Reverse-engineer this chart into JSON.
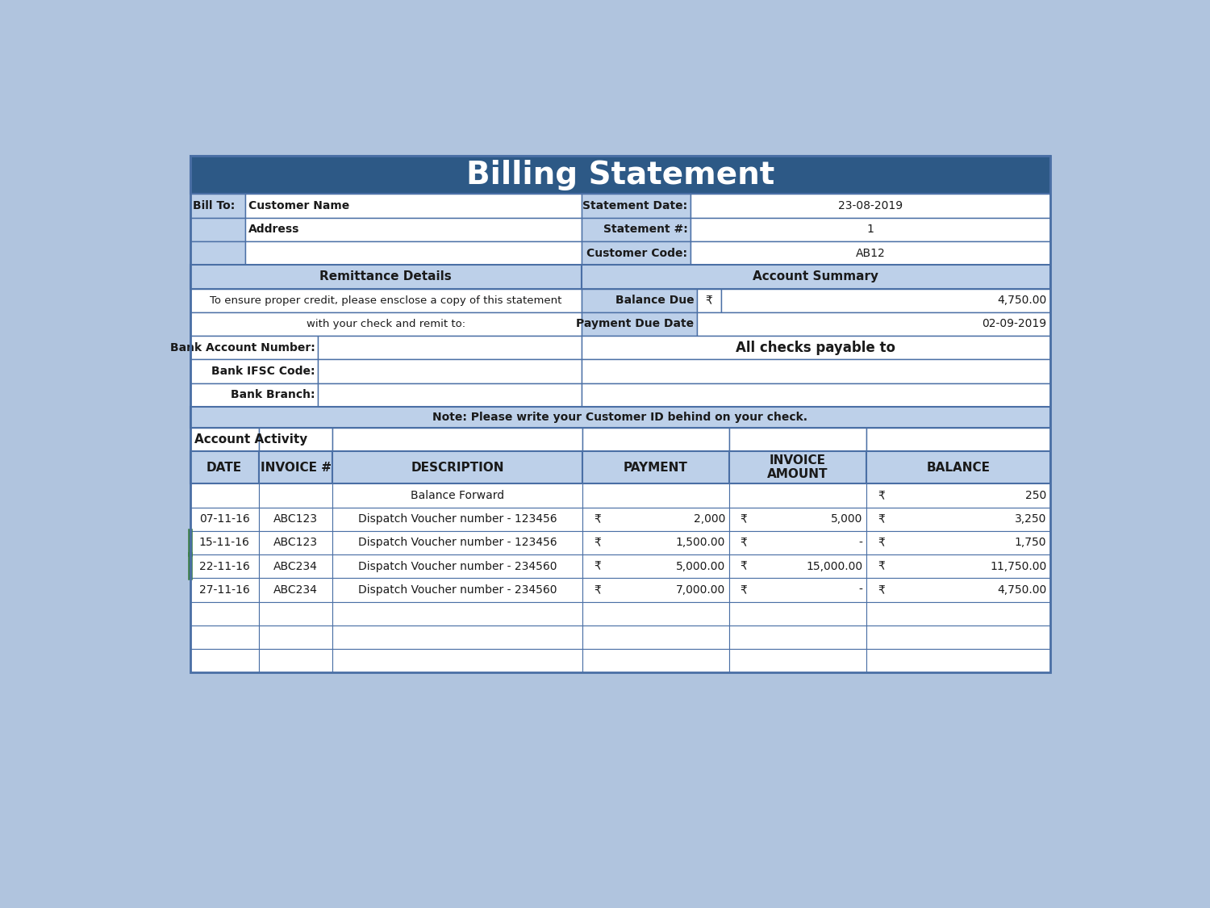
{
  "bg_color": "#b0c4de",
  "header_bg": "#2d5986",
  "header_text": "Billing Statement",
  "header_text_color": "#ffffff",
  "light_blue_bg": "#bdd0e9",
  "white_bg": "#ffffff",
  "border_color": "#4a6fa5",
  "text_dark": "#1a1a1a",
  "bill_to_label": "Bill To:",
  "customer_name": "Customer Name",
  "address": "Address",
  "statement_date_label": "Statement Date:",
  "statement_date": "23-08-2019",
  "statement_num_label": "Statement #:",
  "statement_num": "1",
  "customer_code_label": "Customer Code:",
  "customer_code": "AB12",
  "remittance_header": "Remittance Details",
  "account_summary_header": "Account Summary",
  "remittance_line1": "To ensure proper credit, please ensclose a copy of this statement",
  "remittance_line2": "with your check and remit to:",
  "balance_due_label": "Balance Due",
  "balance_due_symbol": "₹",
  "balance_due_value": "4,750.00",
  "payment_due_label": "Payment Due Date",
  "payment_due_value": "02-09-2019",
  "bank_account_label": "Bank Account Number:",
  "bank_ifsc_label": "Bank IFSC Code:",
  "bank_branch_label": "Bank Branch:",
  "all_checks_text": "All checks payable to",
  "note_text": "Note: Please write your Customer ID behind on your check.",
  "account_activity_label": "Account Activity",
  "col_headers": [
    "DATE",
    "INVOICE #",
    "DESCRIPTION",
    "PAYMENT",
    "INVOICE\nAMOUNT",
    "BALANCE"
  ],
  "transactions": [
    {
      "date": "",
      "invoice": "",
      "description": "Balance Forward",
      "payment_sym": "",
      "payment_val": "",
      "inv_sym": "",
      "inv_val": "",
      "bal_sym": "₹",
      "bal_val": "250"
    },
    {
      "date": "07-11-16",
      "invoice": "ABC123",
      "description": "Dispatch Voucher number - 123456",
      "payment_sym": "₹",
      "payment_val": "2,000",
      "inv_sym": "₹",
      "inv_val": "5,000",
      "bal_sym": "₹",
      "bal_val": "3,250"
    },
    {
      "date": "15-11-16",
      "invoice": "ABC123",
      "description": "Dispatch Voucher number - 123456",
      "payment_sym": "₹",
      "payment_val": "1,500.00",
      "inv_sym": "₹",
      "inv_val": "-",
      "bal_sym": "₹",
      "bal_val": "1,750"
    },
    {
      "date": "22-11-16",
      "invoice": "ABC234",
      "description": "Dispatch Voucher number - 234560",
      "payment_sym": "₹",
      "payment_val": "5,000.00",
      "inv_sym": "₹",
      "inv_val": "15,000.00",
      "bal_sym": "₹",
      "bal_val": "11,750.00"
    },
    {
      "date": "27-11-16",
      "invoice": "ABC234",
      "description": "Dispatch Voucher number - 234560",
      "payment_sym": "₹",
      "payment_val": "7,000.00",
      "inv_sym": "₹",
      "inv_val": "-",
      "bal_sym": "₹",
      "bal_val": "4,750.00"
    },
    {
      "date": "",
      "invoice": "",
      "description": "",
      "payment_sym": "",
      "payment_val": "",
      "inv_sym": "",
      "inv_val": "",
      "bal_sym": "",
      "bal_val": ""
    },
    {
      "date": "",
      "invoice": "",
      "description": "",
      "payment_sym": "",
      "payment_val": "",
      "inv_sym": "",
      "inv_val": "",
      "bal_sym": "",
      "bal_val": ""
    },
    {
      "date": "",
      "invoice": "",
      "description": "",
      "payment_sym": "",
      "payment_val": "",
      "inv_sym": "",
      "inv_val": "",
      "bal_sym": "",
      "bal_val": ""
    }
  ],
  "green_accent_rows": [
    2,
    3
  ],
  "green_color": "#3a7d44"
}
